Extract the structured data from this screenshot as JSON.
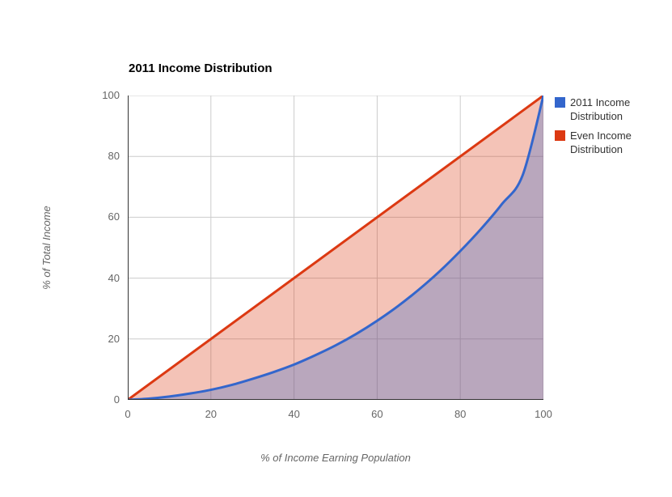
{
  "chart_data": {
    "type": "area",
    "title": "2011 Income Distribution",
    "xlabel": "% of Income Earning Population",
    "ylabel": "% of Total Income",
    "xlim": [
      0,
      100
    ],
    "ylim": [
      0,
      100
    ],
    "x_ticks": [
      0,
      20,
      40,
      60,
      80,
      100
    ],
    "y_ticks": [
      0,
      20,
      40,
      60,
      80,
      100
    ],
    "grid": true,
    "legend_position": "right",
    "series": [
      {
        "name": "2011 Income Distribution",
        "color": "#3366CC",
        "fill_opacity": 0.3,
        "smooth": true,
        "points": [
          [
            0,
            0
          ],
          [
            5,
            0.4
          ],
          [
            10,
            1.1
          ],
          [
            15,
            2.1
          ],
          [
            20,
            3.3
          ],
          [
            25,
            4.9
          ],
          [
            30,
            6.9
          ],
          [
            35,
            9.1
          ],
          [
            40,
            11.6
          ],
          [
            45,
            14.6
          ],
          [
            50,
            17.9
          ],
          [
            55,
            21.7
          ],
          [
            60,
            26
          ],
          [
            65,
            30.8
          ],
          [
            70,
            36.2
          ],
          [
            75,
            42.2
          ],
          [
            80,
            48.9
          ],
          [
            85,
            56.2
          ],
          [
            90,
            64.3
          ],
          [
            95,
            73.8
          ],
          [
            100,
            100
          ]
        ]
      },
      {
        "name": "Even Income Distribution",
        "color": "#DC3912",
        "fill_opacity": 0.3,
        "smooth": false,
        "points": [
          [
            0,
            0
          ],
          [
            100,
            100
          ]
        ]
      }
    ],
    "styles": {
      "background": "#FFFFFF",
      "gridline_color": "#CCCCCC",
      "axis_line_color": "#333333",
      "tick_label_color": "#666666",
      "axis_title_color": "#666666",
      "title_color": "#000000",
      "legend_text_color": "#333333",
      "series_line_width": 3
    }
  }
}
